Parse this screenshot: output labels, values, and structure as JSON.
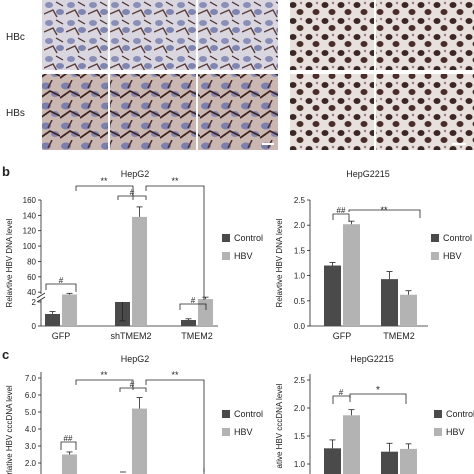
{
  "micrographs": {
    "row_labels": [
      "HBc",
      "HBs"
    ]
  },
  "panel_b": {
    "label": "b",
    "hepg2": {
      "title": "HepG2",
      "ylabel": "Relavtive HBV DNA level",
      "yticks_low": [
        "0",
        "2"
      ],
      "yticks_high": [
        "40",
        "60",
        "80",
        "100",
        "120",
        "140",
        "160"
      ],
      "sig": [
        "#",
        "**",
        "#",
        "**",
        "#"
      ]
    },
    "hepg2215": {
      "title": "HepG2215",
      "ylabel": "Relavtive HBV DNA level",
      "yticks": [
        "0.0",
        "0.5",
        "1.0",
        "1.5",
        "2.0",
        "2.5"
      ],
      "sig": [
        "##",
        "**"
      ]
    }
  },
  "panel_c": {
    "label": "c",
    "hepg2": {
      "title": "HepG2",
      "ylabel": "rlative HBV cccDNA level",
      "yticks": [
        "2.0",
        "3.0",
        "4.0",
        "5.0",
        "6.0",
        "7.0"
      ],
      "sig": [
        "##",
        "**",
        "#",
        "**",
        "##"
      ]
    },
    "hepg2215": {
      "title": "HepG2215",
      "ylabel": "ative HBV cccDNA level",
      "yticks": [
        "1.0",
        "1.5",
        "2.0",
        "2.5"
      ],
      "sig": [
        "#",
        "*"
      ]
    }
  },
  "legend": {
    "control": "Control",
    "hbv": "HBV"
  },
  "colors": {
    "control": "#4a4a4a",
    "hbv": "#b3b3b3"
  },
  "chart_data": [
    {
      "type": "bar",
      "title": "HepG2",
      "ylabel": "Relavtive HBV DNA level",
      "categories": [
        "GFP",
        "shTMEM2",
        "TMEM2"
      ],
      "series": [
        {
          "name": "Control",
          "values": [
            1,
            2,
            0.5
          ],
          "errors": [
            0.2,
            0.6,
            0.1
          ]
        },
        {
          "name": "HBV",
          "values": [
            37,
            138,
            31
          ],
          "errors": [
            1.5,
            13,
            2.5
          ]
        }
      ],
      "ylim": [
        0,
        160
      ],
      "axis_break": [
        2.5,
        35
      ]
    },
    {
      "type": "bar",
      "title": "HepG2215",
      "ylabel": "Relavtive HBV DNA level",
      "categories": [
        "GFP",
        "TMEM2"
      ],
      "series": [
        {
          "name": "Control",
          "values": [
            1.2,
            0.93
          ],
          "errors": [
            0.06,
            0.15
          ]
        },
        {
          "name": "HBV",
          "values": [
            2.02,
            0.62
          ],
          "errors": [
            0.06,
            0.08
          ]
        }
      ],
      "ylim": [
        0,
        2.5
      ]
    },
    {
      "type": "bar",
      "title": "HepG2",
      "ylabel": "rlative HBV cccDNA level",
      "categories": [
        "",
        "",
        ""
      ],
      "series": [
        {
          "name": "Control",
          "values": [
            null,
            null,
            null
          ],
          "errors": [
            null,
            null,
            null
          ]
        },
        {
          "name": "HBV",
          "values": [
            2.5,
            5.2,
            null
          ],
          "errors": [
            0.15,
            0.65,
            null
          ]
        }
      ],
      "ylim": [
        2,
        7
      ]
    },
    {
      "type": "bar",
      "title": "HepG2215",
      "ylabel": "ative HBV cccDNA level",
      "categories": [
        "",
        ""
      ],
      "series": [
        {
          "name": "Control",
          "values": [
            1.28,
            1.22
          ],
          "errors": [
            0.15,
            0.15
          ]
        },
        {
          "name": "HBV",
          "values": [
            1.87,
            1.27
          ],
          "errors": [
            0.1,
            0.09
          ]
        }
      ],
      "ylim": [
        1,
        2.5
      ]
    }
  ]
}
